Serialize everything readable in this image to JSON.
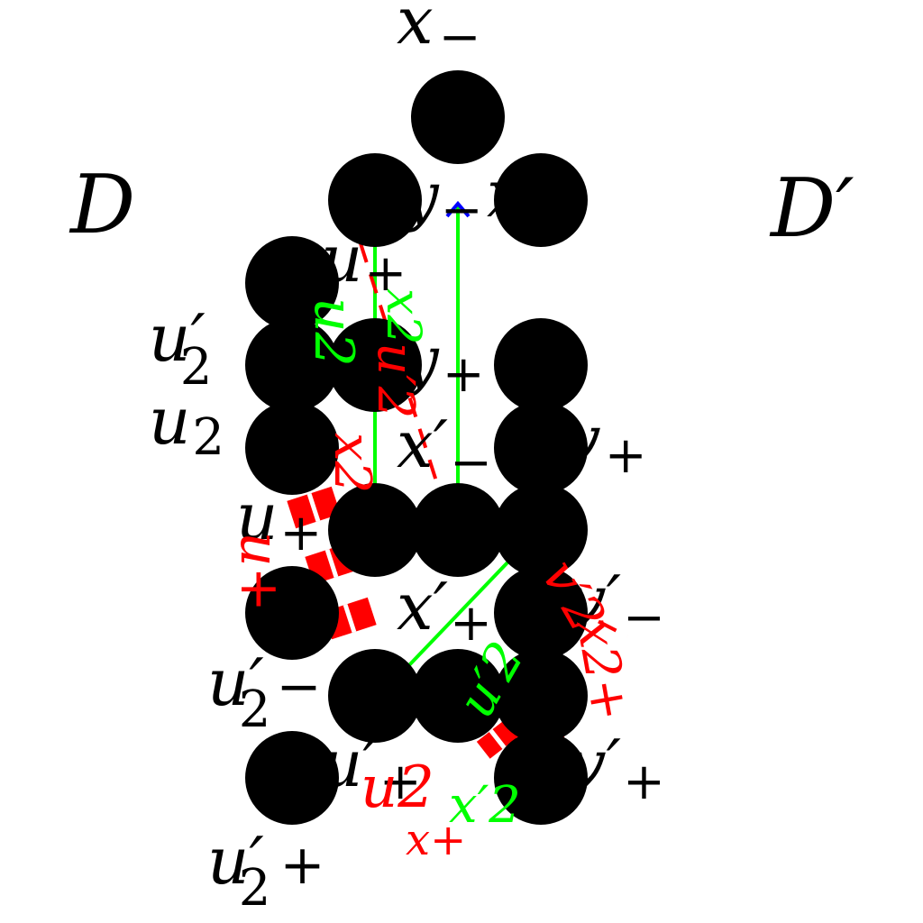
{
  "diagram": {
    "regions": {
      "left": "D",
      "right": "D′"
    },
    "colors": {
      "node": "#000000",
      "edge_red": "#ff0000",
      "edge_green": "#00ff00",
      "arrow_blue": "#0000ff",
      "label": "#000000"
    },
    "nodes": [
      {
        "id": "x_minus_top",
        "name": "x",
        "sub": "−"
      },
      {
        "id": "y_minus",
        "name": "y",
        "sub": "−"
      },
      {
        "id": "x_minus_right",
        "name": "x",
        "sub": "−"
      },
      {
        "id": "u_plus_upper",
        "name": "u",
        "sub": "+"
      },
      {
        "id": "u2_prime_upper",
        "name": "u′",
        "sub": "2"
      },
      {
        "id": "y_plus",
        "name": "y",
        "sub": "+"
      },
      {
        "id": "u2",
        "name": "u",
        "sub": "2"
      },
      {
        "id": "x_prime_minus",
        "name": "x′",
        "sub": "−"
      },
      {
        "id": "v_plus",
        "name": "v",
        "sub": "+"
      },
      {
        "id": "u_plus_mid",
        "name": "u",
        "sub": "+"
      },
      {
        "id": "x_prime_plus",
        "name": "x′",
        "sub": "+"
      },
      {
        "id": "v_prime_minus",
        "name": "v′",
        "sub": "−"
      },
      {
        "id": "u2_prime_minus",
        "name": "u′",
        "sub": "2",
        "tail": "−"
      },
      {
        "id": "u_prime_plus",
        "name": "u′",
        "sub": "+"
      },
      {
        "id": "v_prime_plus",
        "name": "v′",
        "sub": "+"
      },
      {
        "id": "u2_prime_plus",
        "name": "u′",
        "sub": "2",
        "tail": "+"
      }
    ],
    "edge_labels": {
      "red_u2_prime": "u′2",
      "red_x2": "x2",
      "red_u_plus": "u+",
      "red_v_prime_2": "v′2",
      "red_x2_plus": "x2+",
      "red_u2": "u2",
      "red_x_plus": "x+",
      "green_u2": "u2",
      "green_x2": "x2",
      "green_u2_prime": "u′2",
      "green_x2_prime": "x′2"
    }
  }
}
